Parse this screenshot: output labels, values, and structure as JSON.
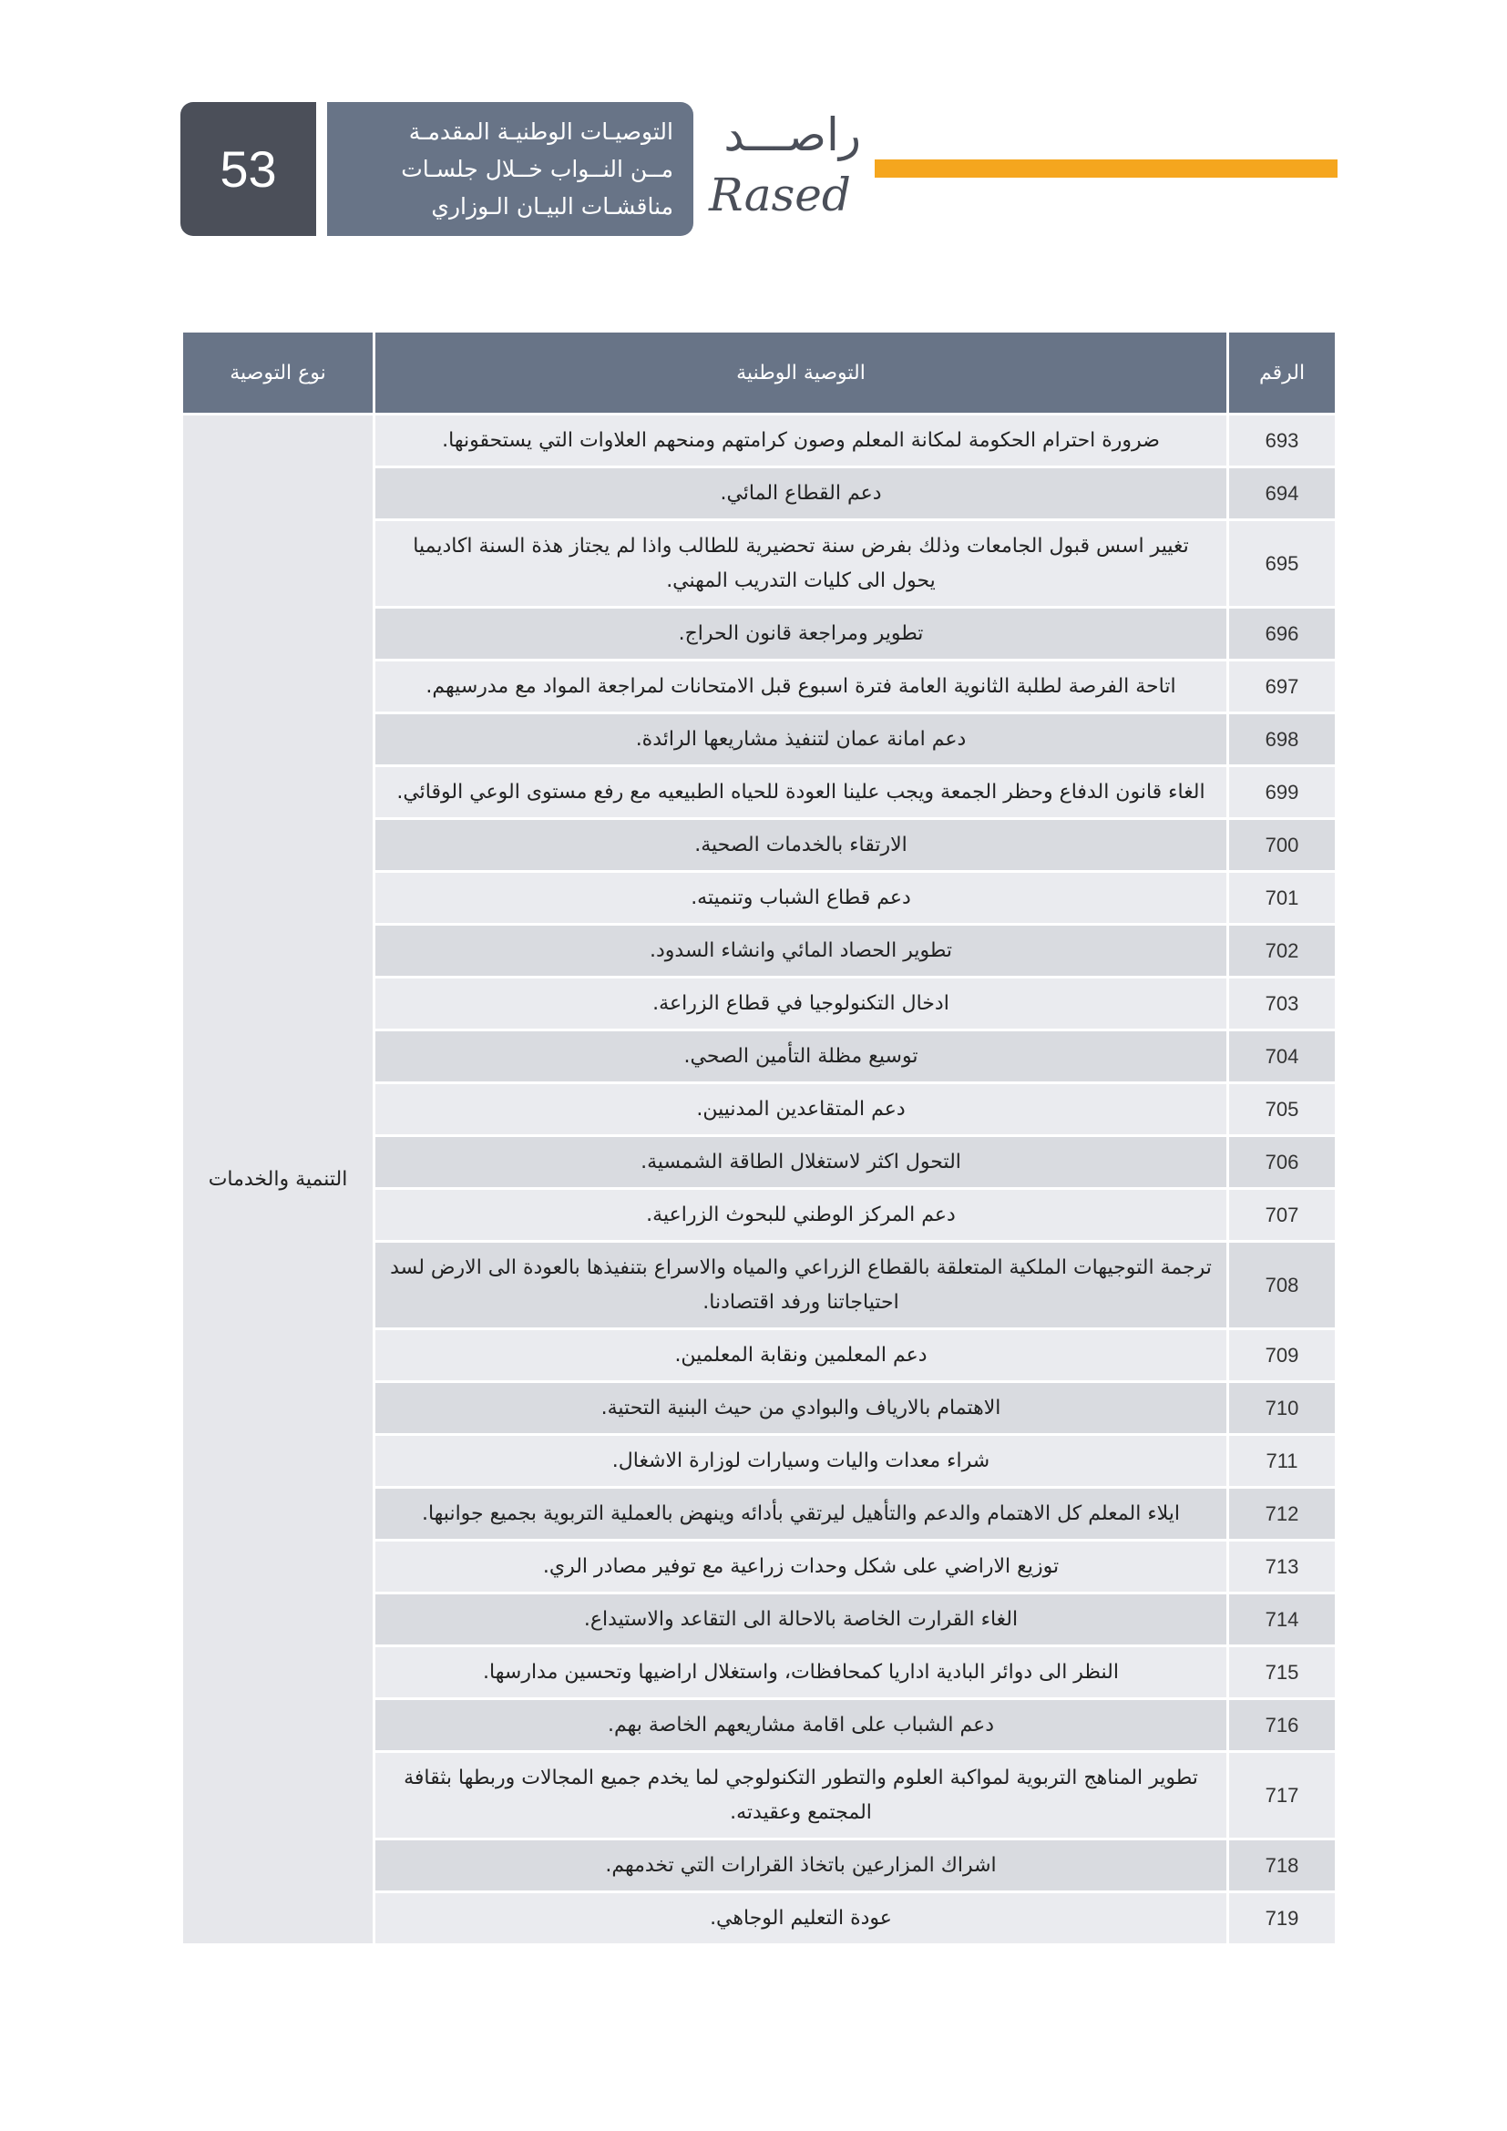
{
  "header": {
    "page_number": "53",
    "title_lines": [
      "التوصيـات الوطنيـة المقدمـة",
      "مــن النــواب خــلال جلسـات",
      "مناقشـات البيـان الـوزاري"
    ],
    "logo_ar": "راصـــد",
    "logo_en": "Rased",
    "accent_color": "#f5a61e"
  },
  "table": {
    "columns": [
      "الرقم",
      "التوصية الوطنية",
      "نوع التوصية"
    ],
    "category": "التنمية والخدمات",
    "rows": [
      {
        "num": "693",
        "text": "ضرورة احترام الحكومة لمكانة المعلم وصون كرامتهم ومنحهم العلاوات التي يستحقونها."
      },
      {
        "num": "694",
        "text": "دعم القطاع المائي."
      },
      {
        "num": "695",
        "text": "تغيير اسس قبول الجامعات وذلك بفرض سنة تحضيرية للطالب واذا لم يجتاز هذة السنة اكاديميا يحول الى كليات التدريب المهني."
      },
      {
        "num": "696",
        "text": "تطوير ومراجعة قانون الحراج."
      },
      {
        "num": "697",
        "text": "اتاحة الفرصة لطلبة الثانوية العامة فترة اسبوع قبل الامتحانات لمراجعة المواد مع مدرسيهم."
      },
      {
        "num": "698",
        "text": "دعم امانة عمان لتنفيذ مشاريعها الرائدة."
      },
      {
        "num": "699",
        "text": "الغاء قانون الدفاع وحظر الجمعة ويجب علينا العودة للحياه الطبيعيه مع رفع مستوى الوعي الوقائي."
      },
      {
        "num": "700",
        "text": "الارتقاء بالخدمات الصحية."
      },
      {
        "num": "701",
        "text": "دعم قطاع الشباب وتنميته."
      },
      {
        "num": "702",
        "text": "تطوير الحصاد المائي وانشاء السدود."
      },
      {
        "num": "703",
        "text": "ادخال التكنولوجيا في قطاع الزراعة."
      },
      {
        "num": "704",
        "text": "توسيع مظلة التأمين الصحي."
      },
      {
        "num": "705",
        "text": "دعم المتقاعدين المدنيين."
      },
      {
        "num": "706",
        "text": "التحول اكثر لاستغلال الطاقة الشمسية."
      },
      {
        "num": "707",
        "text": "دعم المركز الوطني للبحوث الزراعية."
      },
      {
        "num": "708",
        "text": "ترجمة التوجيهات الملكية المتعلقة بالقطاع الزراعي والمياه والاسراع بتنفيذها بالعودة الى الارض لسد احتياجاتنا ورفد اقتصادنا."
      },
      {
        "num": "709",
        "text": "دعم المعلمين ونقابة المعلمين."
      },
      {
        "num": "710",
        "text": "الاهتمام بالارياف والبوادي من حيث البنية التحتية."
      },
      {
        "num": "711",
        "text": "شراء معدات واليات وسيارات لوزارة الاشغال."
      },
      {
        "num": "712",
        "text": "ايلاء المعلم كل الاهتمام والدعم والتأهيل ليرتقي بأدائه وينهض بالعملية التربوية بجميع جوانبها."
      },
      {
        "num": "713",
        "text": "توزيع الاراضي على شكل وحدات زراعية مع توفير مصادر الري."
      },
      {
        "num": "714",
        "text": "الغاء القرارت الخاصة بالاحالة الى التقاعد والاستيداع."
      },
      {
        "num": "715",
        "text": "النظر الى دوائر البادية اداريا كمحافظات، واستغلال اراضيها وتحسين مدارسها."
      },
      {
        "num": "716",
        "text": "دعم الشباب على اقامة مشاريعهم الخاصة بهم."
      },
      {
        "num": "717",
        "text": "تطوير المناهج التربوية لمواكبة العلوم والتطور التكنولوجي لما يخدم جميع المجالات وربطها بثقافة المجتمع وعقيدته."
      },
      {
        "num": "718",
        "text": "اشراك المزارعين باتخاذ القرارات التي تخدمهم."
      },
      {
        "num": "719",
        "text": "عودة التعليم الوجاهي."
      }
    ]
  }
}
